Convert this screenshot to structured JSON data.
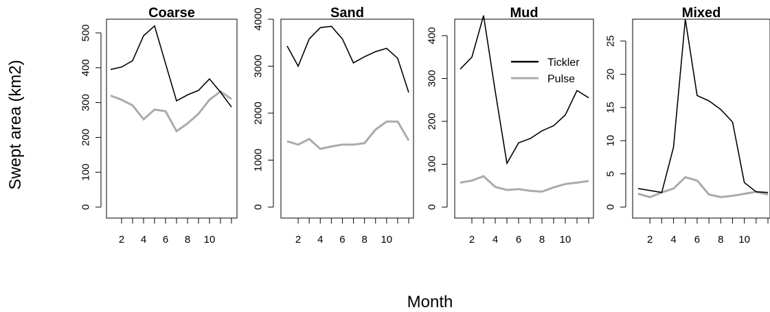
{
  "figure": {
    "ylabel": "Swept area (km2)",
    "xlabel": "Month"
  },
  "legend": {
    "placement": "top-right of Mud panel",
    "entries": [
      {
        "label": "Tickler",
        "color": "#000000"
      },
      {
        "label": "Pulse",
        "color": "#aaaaaa"
      }
    ]
  },
  "chart_data": [
    {
      "type": "line",
      "title": "Coarse",
      "x": [
        1,
        2,
        3,
        4,
        5,
        6,
        7,
        8,
        9,
        10,
        11,
        12
      ],
      "xticks": [
        2,
        4,
        6,
        8,
        10
      ],
      "xlim": [
        1,
        12
      ],
      "yticks": [
        0,
        100,
        200,
        300,
        400,
        500
      ],
      "ylim": [
        0,
        500
      ],
      "series": [
        {
          "name": "Tickler",
          "color": "#000000",
          "values": [
            395,
            402,
            420,
            492,
            520,
            412,
            305,
            322,
            335,
            368,
            330,
            287
          ]
        },
        {
          "name": "Pulse",
          "color": "#aaaaaa",
          "values": [
            320,
            308,
            292,
            252,
            280,
            275,
            218,
            240,
            268,
            308,
            332,
            310
          ]
        }
      ]
    },
    {
      "type": "line",
      "title": "Sand",
      "x": [
        1,
        2,
        3,
        4,
        5,
        6,
        7,
        8,
        9,
        10,
        11,
        12
      ],
      "xticks": [
        2,
        4,
        6,
        8,
        10
      ],
      "xlim": [
        1,
        12
      ],
      "yticks": [
        0,
        1000,
        2000,
        3000,
        4000
      ],
      "ylim": [
        0,
        4000
      ],
      "series": [
        {
          "name": "Tickler",
          "color": "#000000",
          "values": [
            3430,
            3000,
            3580,
            3820,
            3850,
            3580,
            3070,
            3200,
            3310,
            3380,
            3170,
            2440
          ]
        },
        {
          "name": "Pulse",
          "color": "#aaaaaa",
          "values": [
            1400,
            1330,
            1450,
            1240,
            1290,
            1330,
            1330,
            1360,
            1650,
            1820,
            1820,
            1420
          ]
        }
      ]
    },
    {
      "type": "line",
      "title": "Mud",
      "x": [
        1,
        2,
        3,
        4,
        5,
        6,
        7,
        8,
        9,
        10,
        11,
        12
      ],
      "xticks": [
        2,
        4,
        6,
        8,
        10
      ],
      "xlim": [
        1,
        12
      ],
      "yticks": [
        0,
        100,
        200,
        300,
        400
      ],
      "ylim": [
        0,
        440
      ],
      "series": [
        {
          "name": "Tickler",
          "color": "#000000",
          "values": [
            322,
            350,
            447,
            270,
            102,
            150,
            160,
            178,
            190,
            215,
            272,
            255
          ]
        },
        {
          "name": "Pulse",
          "color": "#aaaaaa",
          "values": [
            57,
            62,
            72,
            47,
            40,
            42,
            38,
            36,
            46,
            54,
            57,
            61
          ]
        }
      ]
    },
    {
      "type": "line",
      "title": "Mixed",
      "x": [
        1,
        2,
        3,
        4,
        5,
        6,
        7,
        8,
        9,
        10,
        11,
        12
      ],
      "xticks": [
        2,
        4,
        6,
        8,
        10
      ],
      "xlim": [
        1,
        12
      ],
      "yticks": [
        0,
        5,
        10,
        15,
        20,
        25
      ],
      "ylim": [
        0,
        28.5
      ],
      "series": [
        {
          "name": "Tickler",
          "color": "#000000",
          "values": [
            2.8,
            2.5,
            2.2,
            9,
            28.3,
            16.8,
            16,
            14.7,
            12.8,
            3.7,
            2.3,
            2.2
          ]
        },
        {
          "name": "Pulse",
          "color": "#aaaaaa",
          "values": [
            2,
            1.5,
            2.2,
            2.8,
            4.5,
            4,
            1.9,
            1.5,
            1.7,
            2,
            2.3,
            1.9
          ]
        }
      ]
    }
  ]
}
